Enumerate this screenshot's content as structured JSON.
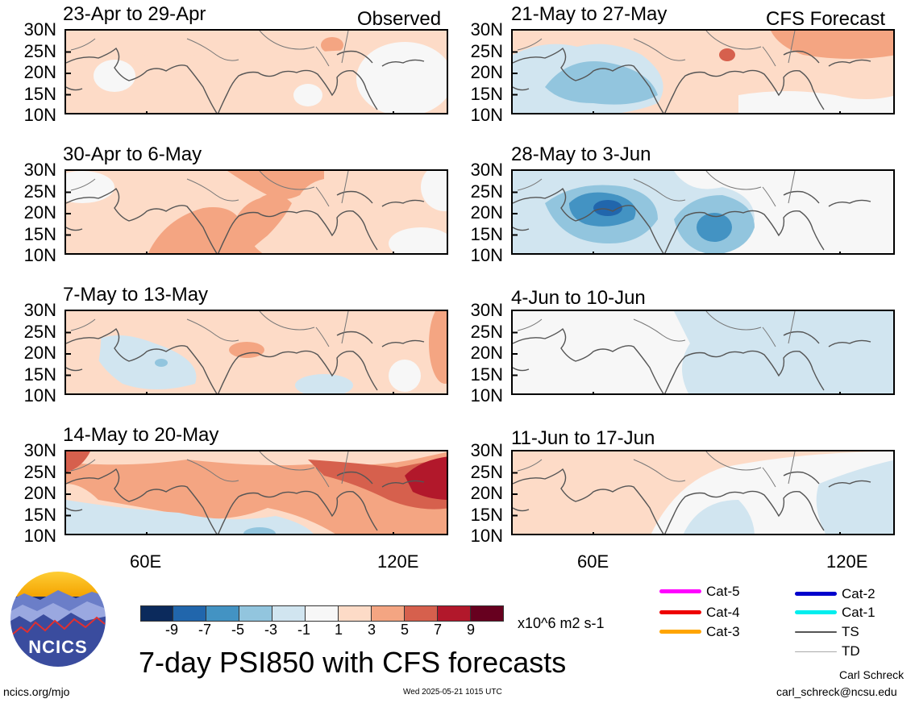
{
  "title": "7-day PSI850 with CFS forecasts",
  "headers": {
    "observed": "Observed",
    "forecast": "CFS Forecast"
  },
  "lat_labels": [
    "30N",
    "25N",
    "20N",
    "15N",
    "10N"
  ],
  "lon_labels": [
    "60E",
    "120E"
  ],
  "panels": [
    {
      "title": "23-Apr to 29-Apr",
      "kind": "observed"
    },
    {
      "title": "30-Apr to 6-May",
      "kind": "observed"
    },
    {
      "title": "7-May to 13-May",
      "kind": "observed"
    },
    {
      "title": "14-May to 20-May",
      "kind": "observed"
    },
    {
      "title": "21-May to 27-May",
      "kind": "forecast"
    },
    {
      "title": "28-May to 3-Jun",
      "kind": "forecast"
    },
    {
      "title": "4-Jun to 10-Jun",
      "kind": "forecast"
    },
    {
      "title": "11-Jun to 17-Jun",
      "kind": "forecast"
    }
  ],
  "colorbar": {
    "units": "x10^6 m2 s-1",
    "labels": [
      "-9",
      "-7",
      "-5",
      "-3",
      "-1",
      "1",
      "3",
      "5",
      "7",
      "9"
    ],
    "colors": [
      "#0b2a5c",
      "#2166ac",
      "#4393c3",
      "#92c5de",
      "#d1e5f0",
      "#f7f7f7",
      "#fddbc7",
      "#f4a582",
      "#d6604d",
      "#b2182b",
      "#67001f"
    ]
  },
  "legend": [
    {
      "label": "Cat-5",
      "color": "#ff00ff"
    },
    {
      "label": "Cat-4",
      "color": "#ee0000"
    },
    {
      "label": "Cat-3",
      "color": "#ffa500"
    },
    {
      "label": "Cat-2",
      "color": "#0000cc"
    },
    {
      "label": "Cat-1",
      "color": "#00eeee"
    },
    {
      "label": "TS",
      "color": "#555555"
    },
    {
      "label": "TD",
      "color": "#aaaaaa"
    }
  ],
  "logo": {
    "text": "NCICS"
  },
  "footer": {
    "url": "ncics.org/mjo",
    "timestamp": "Wed 2025-05-21 1015 UTC",
    "author": "Carl Schreck",
    "email": "carl_schreck@ncsu.edu"
  }
}
